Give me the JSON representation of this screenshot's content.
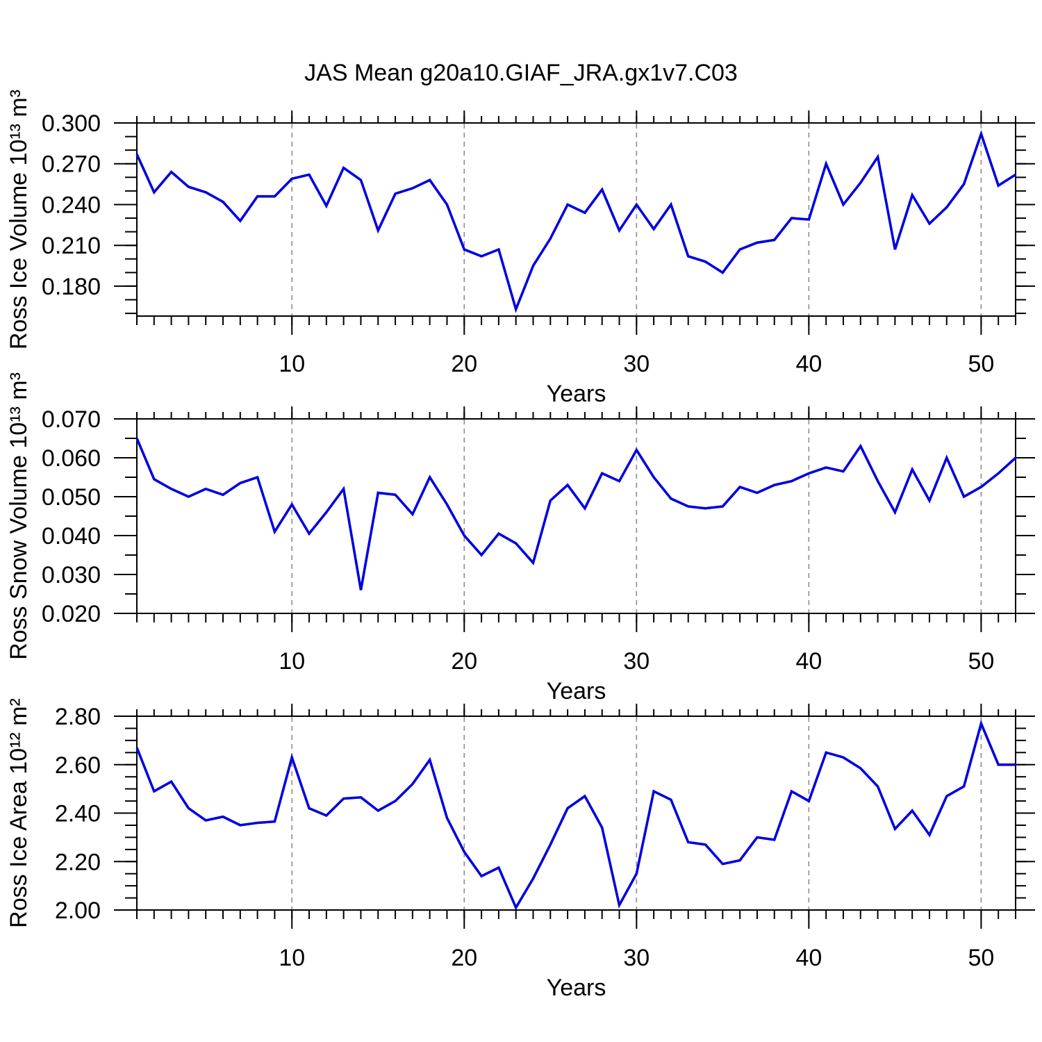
{
  "title": "JAS Mean g20a10.GIAF_JRA.gx1v7.C03",
  "chart_data": {
    "type": "line",
    "title": "JAS Mean g20a10.GIAF_JRA.gx1v7.C03",
    "xlabel": "Years",
    "xlim": [
      1,
      52
    ],
    "xticks": [
      10,
      20,
      30,
      40,
      50
    ],
    "xtick_labels": [
      "10",
      "20",
      "30",
      "40",
      "50"
    ],
    "x_minor_step": 1,
    "grid": "vertical dashed gray lines at major x ticks",
    "legend": "none",
    "line_color": "#0000E0",
    "frame_color": "#000000",
    "gridline_color": "#8c8c8c",
    "x": [
      1,
      2,
      3,
      4,
      5,
      6,
      7,
      8,
      9,
      10,
      11,
      12,
      13,
      14,
      15,
      16,
      17,
      18,
      19,
      20,
      21,
      22,
      23,
      24,
      25,
      26,
      27,
      28,
      29,
      30,
      31,
      32,
      33,
      34,
      35,
      36,
      37,
      38,
      39,
      40,
      41,
      42,
      43,
      44,
      45,
      46,
      47,
      48,
      49,
      50,
      51,
      52
    ],
    "panels": [
      {
        "name": "ross-ice-volume",
        "ylabel": "Ross Ice Volume 10¹³ m³",
        "ylim": [
          0.158,
          0.3
        ],
        "yticks": [
          0.18,
          0.21,
          0.24,
          0.27,
          0.3
        ],
        "ytick_labels": [
          "0.180",
          "0.210",
          "0.240",
          "0.270",
          "0.300"
        ],
        "y_minor_step": 0.01,
        "values": [
          0.277,
          0.249,
          0.264,
          0.253,
          0.249,
          0.242,
          0.228,
          0.246,
          0.246,
          0.259,
          0.262,
          0.239,
          0.267,
          0.258,
          0.221,
          0.248,
          0.252,
          0.258,
          0.24,
          0.207,
          0.202,
          0.207,
          0.163,
          0.195,
          0.215,
          0.24,
          0.234,
          0.251,
          0.221,
          0.24,
          0.222,
          0.24,
          0.202,
          0.198,
          0.19,
          0.207,
          0.212,
          0.214,
          0.23,
          0.229,
          0.27,
          0.24,
          0.256,
          0.275,
          0.207,
          0.247,
          0.226,
          0.238,
          0.255,
          0.292,
          0.254,
          0.262
        ]
      },
      {
        "name": "ross-snow-volume",
        "ylabel": "Ross Snow Volume 10¹³ m³",
        "ylim": [
          0.02,
          0.07
        ],
        "yticks": [
          0.02,
          0.03,
          0.04,
          0.05,
          0.06,
          0.07
        ],
        "ytick_labels": [
          "0.020",
          "0.030",
          "0.040",
          "0.050",
          "0.060",
          "0.070"
        ],
        "y_minor_step": 0.005,
        "values": [
          0.065,
          0.0545,
          0.052,
          0.05,
          0.052,
          0.0505,
          0.0535,
          0.055,
          0.041,
          0.048,
          0.0405,
          0.046,
          0.052,
          0.026,
          0.051,
          0.0505,
          0.0455,
          0.055,
          0.048,
          0.04,
          0.035,
          0.0405,
          0.038,
          0.033,
          0.049,
          0.053,
          0.047,
          0.056,
          0.054,
          0.062,
          0.055,
          0.0495,
          0.0475,
          0.047,
          0.0475,
          0.0525,
          0.051,
          0.053,
          0.054,
          0.056,
          0.0575,
          0.0565,
          0.063,
          0.054,
          0.046,
          0.057,
          0.049,
          0.06,
          0.05,
          0.0525,
          0.056,
          0.06
        ]
      },
      {
        "name": "ross-ice-area",
        "ylabel": "Ross Ice Area 10¹² m²",
        "ylim": [
          2.0,
          2.8
        ],
        "yticks": [
          2.0,
          2.2,
          2.4,
          2.6,
          2.8
        ],
        "ytick_labels": [
          "2.00",
          "2.20",
          "2.40",
          "2.60",
          "2.80"
        ],
        "y_minor_step": 0.05,
        "values": [
          2.67,
          2.49,
          2.53,
          2.42,
          2.37,
          2.385,
          2.35,
          2.36,
          2.365,
          2.63,
          2.42,
          2.39,
          2.46,
          2.465,
          2.41,
          2.45,
          2.52,
          2.62,
          2.38,
          2.24,
          2.14,
          2.175,
          2.01,
          2.13,
          2.27,
          2.42,
          2.47,
          2.34,
          2.02,
          2.15,
          2.49,
          2.455,
          2.28,
          2.27,
          2.19,
          2.205,
          2.3,
          2.29,
          2.49,
          2.45,
          2.65,
          2.63,
          2.585,
          2.51,
          2.335,
          2.41,
          2.31,
          2.47,
          2.51,
          2.77,
          2.6,
          2.6
        ]
      }
    ]
  }
}
